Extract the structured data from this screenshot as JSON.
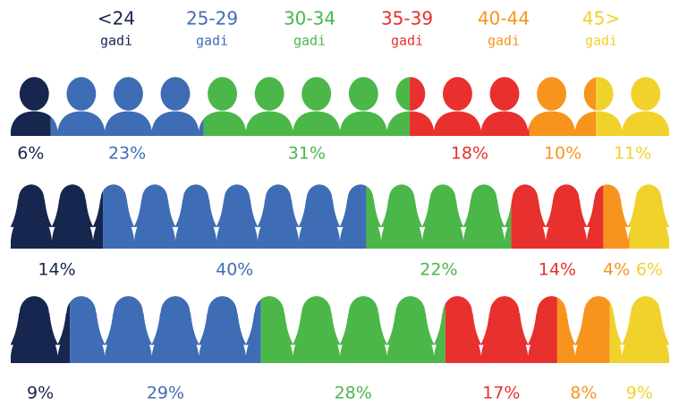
{
  "chart_data": {
    "type": "icon-stack",
    "legend_unit": "gadi",
    "series": [
      {
        "name": "<24",
        "color": "#16264f",
        "values": [
          6,
          14,
          9
        ],
        "value_labels": [
          "6%",
          "14%",
          "9%"
        ]
      },
      {
        "name": "25-29",
        "color": "#3f6db5",
        "values": [
          23,
          40,
          29
        ],
        "value_labels": [
          "23%",
          "40%",
          "29%"
        ]
      },
      {
        "name": "30-34",
        "color": "#4bb749",
        "values": [
          31,
          22,
          28
        ],
        "value_labels": [
          "31%",
          "22%",
          "28%"
        ]
      },
      {
        "name": "35-39",
        "color": "#e8302e",
        "values": [
          18,
          14,
          17
        ],
        "value_labels": [
          "18%",
          "14%",
          "17%"
        ]
      },
      {
        "name": "40-44",
        "color": "#f7941e",
        "values": [
          10,
          4,
          8
        ],
        "value_labels": [
          "10%",
          "4%",
          "8%"
        ]
      },
      {
        "name": "45>",
        "color": "#f1d22c",
        "values": [
          11,
          6,
          9
        ],
        "value_labels": [
          "11%",
          "6%",
          "9%"
        ]
      }
    ],
    "rows": [
      {
        "icon": "male",
        "count": 14
      },
      {
        "icon": "female",
        "count": 16
      },
      {
        "icon": "female",
        "count": 14
      }
    ]
  }
}
